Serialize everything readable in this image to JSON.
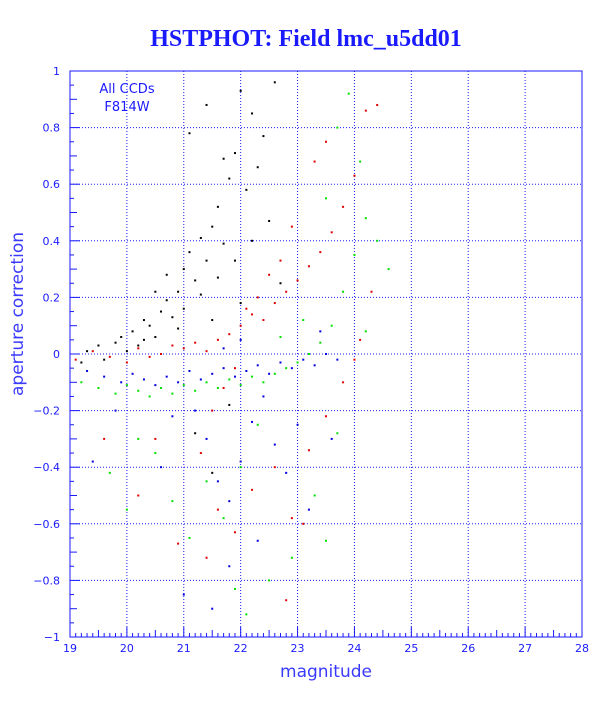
{
  "title": "HSTPHOT: Field lmc_u5dd01",
  "chart_data": {
    "type": "scatter",
    "title": "HSTPHOT: Field lmc_u5dd01",
    "xlabel": "magnitude",
    "ylabel": "aperture correction",
    "xlim": [
      19,
      28
    ],
    "ylim": [
      -1,
      1
    ],
    "x_ticks": [
      19,
      20,
      21,
      22,
      23,
      24,
      25,
      26,
      27,
      28
    ],
    "y_ticks": [
      -1,
      -0.8,
      -0.6,
      -0.4,
      -0.2,
      0,
      0.2,
      0.4,
      0.6,
      0.8,
      1
    ],
    "x_tick_labels": [
      "19",
      "20",
      "21",
      "22",
      "23",
      "24",
      "25",
      "26",
      "27",
      "28"
    ],
    "y_tick_labels": [
      "−1",
      "−0.8",
      "−0.6",
      "−0.4",
      "−0.2",
      "0",
      "0.2",
      "0.4",
      "0.6",
      "0.8",
      "1"
    ],
    "grid": true,
    "grid_style": "dotted",
    "annotation": [
      "All CCDs",
      "F814W"
    ],
    "colors": {
      "axis": "#1a1aff",
      "grid": "#1a1aff"
    },
    "series": [
      {
        "color": "#000000",
        "points": [
          [
            19.2,
            -0.03
          ],
          [
            19.3,
            0.01
          ],
          [
            19.5,
            0.03
          ],
          [
            19.6,
            -0.02
          ],
          [
            19.8,
            0.04
          ],
          [
            19.9,
            0.06
          ],
          [
            20.0,
            0.01
          ],
          [
            20.1,
            0.08
          ],
          [
            20.2,
            0.03
          ],
          [
            20.3,
            0.12
          ],
          [
            20.4,
            0.1
          ],
          [
            20.5,
            0.06
          ],
          [
            20.6,
            0.15
          ],
          [
            20.7,
            0.19
          ],
          [
            20.8,
            0.13
          ],
          [
            20.9,
            0.22
          ],
          [
            21.0,
            0.3
          ],
          [
            21.1,
            0.36
          ],
          [
            21.2,
            0.26
          ],
          [
            21.3,
            0.41
          ],
          [
            21.4,
            0.33
          ],
          [
            21.5,
            0.45
          ],
          [
            21.6,
            0.52
          ],
          [
            21.7,
            0.39
          ],
          [
            21.8,
            0.62
          ],
          [
            21.9,
            0.71
          ],
          [
            22.0,
            0.93
          ],
          [
            22.2,
            0.85
          ],
          [
            22.4,
            0.77
          ],
          [
            22.6,
            0.96
          ],
          [
            21.1,
            0.78
          ],
          [
            21.4,
            0.88
          ],
          [
            21.7,
            0.69
          ],
          [
            22.1,
            0.58
          ],
          [
            22.3,
            0.66
          ],
          [
            20.5,
            0.22
          ],
          [
            20.7,
            0.28
          ],
          [
            21.0,
            0.16
          ],
          [
            21.3,
            0.21
          ],
          [
            21.6,
            0.27
          ],
          [
            21.9,
            0.33
          ],
          [
            22.2,
            0.4
          ],
          [
            22.5,
            0.47
          ],
          [
            20.3,
            0.05
          ],
          [
            20.9,
            0.09
          ],
          [
            21.5,
            0.12
          ],
          [
            22.0,
            0.18
          ],
          [
            22.7,
            0.25
          ],
          [
            21.2,
            -0.28
          ],
          [
            21.5,
            -0.42
          ],
          [
            21.8,
            -0.18
          ]
        ]
      },
      {
        "color": "#e00000",
        "points": [
          [
            19.1,
            -0.02
          ],
          [
            19.4,
            0.01
          ],
          [
            19.7,
            -0.01
          ],
          [
            20.0,
            -0.03
          ],
          [
            20.2,
            0.02
          ],
          [
            20.4,
            -0.01
          ],
          [
            20.6,
            0.0
          ],
          [
            20.8,
            0.03
          ],
          [
            21.0,
            0.02
          ],
          [
            21.2,
            0.04
          ],
          [
            21.4,
            0.01
          ],
          [
            21.6,
            0.05
          ],
          [
            21.8,
            0.07
          ],
          [
            22.0,
            0.1
          ],
          [
            22.2,
            0.14
          ],
          [
            22.4,
            0.12
          ],
          [
            22.6,
            0.18
          ],
          [
            22.8,
            0.22
          ],
          [
            23.0,
            0.26
          ],
          [
            23.2,
            0.31
          ],
          [
            23.4,
            0.36
          ],
          [
            23.6,
            0.43
          ],
          [
            23.8,
            0.52
          ],
          [
            24.0,
            0.63
          ],
          [
            24.2,
            0.86
          ],
          [
            24.4,
            0.88
          ],
          [
            23.5,
            0.75
          ],
          [
            23.3,
            0.68
          ],
          [
            22.9,
            0.45
          ],
          [
            22.7,
            0.33
          ],
          [
            22.5,
            0.28
          ],
          [
            22.3,
            0.2
          ],
          [
            22.1,
            0.16
          ],
          [
            21.9,
            -0.05
          ],
          [
            21.7,
            -0.12
          ],
          [
            21.5,
            -0.2
          ],
          [
            21.3,
            -0.35
          ],
          [
            21.6,
            -0.55
          ],
          [
            21.9,
            -0.63
          ],
          [
            22.2,
            -0.48
          ],
          [
            22.6,
            -0.4
          ],
          [
            22.9,
            -0.58
          ],
          [
            23.2,
            -0.34
          ],
          [
            23.5,
            -0.22
          ],
          [
            23.8,
            -0.1
          ],
          [
            24.1,
            0.05
          ],
          [
            24.3,
            0.22
          ],
          [
            20.5,
            -0.3
          ],
          [
            20.9,
            -0.67
          ],
          [
            21.4,
            -0.72
          ],
          [
            22.8,
            -0.87
          ],
          [
            23.1,
            -0.6
          ],
          [
            24.0,
            -0.02
          ],
          [
            19.6,
            -0.3
          ],
          [
            20.2,
            -0.5
          ]
        ]
      },
      {
        "color": "#0000e0",
        "points": [
          [
            19.3,
            -0.06
          ],
          [
            19.6,
            -0.08
          ],
          [
            19.9,
            -0.1
          ],
          [
            20.1,
            -0.07
          ],
          [
            20.3,
            -0.09
          ],
          [
            20.5,
            -0.11
          ],
          [
            20.7,
            -0.08
          ],
          [
            20.9,
            -0.1
          ],
          [
            21.1,
            -0.06
          ],
          [
            21.3,
            -0.09
          ],
          [
            21.5,
            -0.07
          ],
          [
            21.7,
            -0.05
          ],
          [
            21.9,
            -0.08
          ],
          [
            22.1,
            -0.06
          ],
          [
            22.3,
            -0.04
          ],
          [
            22.5,
            -0.07
          ],
          [
            22.7,
            -0.03
          ],
          [
            22.9,
            -0.05
          ],
          [
            23.1,
            -0.02
          ],
          [
            23.3,
            -0.04
          ],
          [
            23.5,
            0.0
          ],
          [
            23.7,
            -0.02
          ],
          [
            21.2,
            -0.2
          ],
          [
            21.4,
            -0.3
          ],
          [
            21.6,
            -0.45
          ],
          [
            21.8,
            -0.52
          ],
          [
            22.0,
            -0.38
          ],
          [
            22.2,
            -0.24
          ],
          [
            22.4,
            -0.15
          ],
          [
            22.6,
            -0.32
          ],
          [
            22.8,
            -0.42
          ],
          [
            23.0,
            -0.25
          ],
          [
            21.0,
            -0.85
          ],
          [
            21.5,
            -0.9
          ],
          [
            21.8,
            -0.75
          ],
          [
            22.3,
            -0.66
          ],
          [
            23.2,
            -0.55
          ],
          [
            23.6,
            -0.3
          ],
          [
            20.6,
            -0.4
          ],
          [
            20.8,
            -0.22
          ],
          [
            19.4,
            -0.38
          ],
          [
            19.8,
            -0.2
          ],
          [
            21.7,
            0.02
          ],
          [
            22.0,
            0.05
          ],
          [
            23.4,
            0.08
          ]
        ]
      },
      {
        "color": "#00e000",
        "points": [
          [
            19.2,
            -0.1
          ],
          [
            19.5,
            -0.12
          ],
          [
            19.8,
            -0.14
          ],
          [
            20.0,
            -0.11
          ],
          [
            20.2,
            -0.13
          ],
          [
            20.4,
            -0.15
          ],
          [
            20.6,
            -0.12
          ],
          [
            20.8,
            -0.14
          ],
          [
            21.0,
            -0.11
          ],
          [
            21.2,
            -0.13
          ],
          [
            21.4,
            -0.1
          ],
          [
            21.6,
            -0.12
          ],
          [
            21.8,
            -0.09
          ],
          [
            22.0,
            -0.11
          ],
          [
            22.2,
            -0.08
          ],
          [
            22.4,
            -0.1
          ],
          [
            22.6,
            -0.07
          ],
          [
            22.8,
            -0.05
          ],
          [
            23.0,
            -0.03
          ],
          [
            23.2,
            0.0
          ],
          [
            23.4,
            0.04
          ],
          [
            23.6,
            0.1
          ],
          [
            23.8,
            0.22
          ],
          [
            24.0,
            0.35
          ],
          [
            24.2,
            0.48
          ],
          [
            24.4,
            0.4
          ],
          [
            24.6,
            0.3
          ],
          [
            23.9,
            0.92
          ],
          [
            23.7,
            0.8
          ],
          [
            24.1,
            0.68
          ],
          [
            23.5,
            0.55
          ],
          [
            23.1,
            0.12
          ],
          [
            22.7,
            0.06
          ],
          [
            22.3,
            -0.25
          ],
          [
            22.0,
            -0.4
          ],
          [
            21.7,
            -0.58
          ],
          [
            21.4,
            -0.45
          ],
          [
            21.1,
            -0.65
          ],
          [
            20.8,
            -0.52
          ],
          [
            20.5,
            -0.35
          ],
          [
            20.2,
            -0.3
          ],
          [
            22.5,
            -0.8
          ],
          [
            22.9,
            -0.72
          ],
          [
            23.3,
            -0.5
          ],
          [
            23.7,
            -0.28
          ],
          [
            24.2,
            0.08
          ],
          [
            20.0,
            -0.55
          ],
          [
            19.7,
            -0.42
          ],
          [
            22.1,
            -0.92
          ],
          [
            21.9,
            -0.83
          ],
          [
            23.5,
            -0.66
          ]
        ]
      }
    ]
  }
}
